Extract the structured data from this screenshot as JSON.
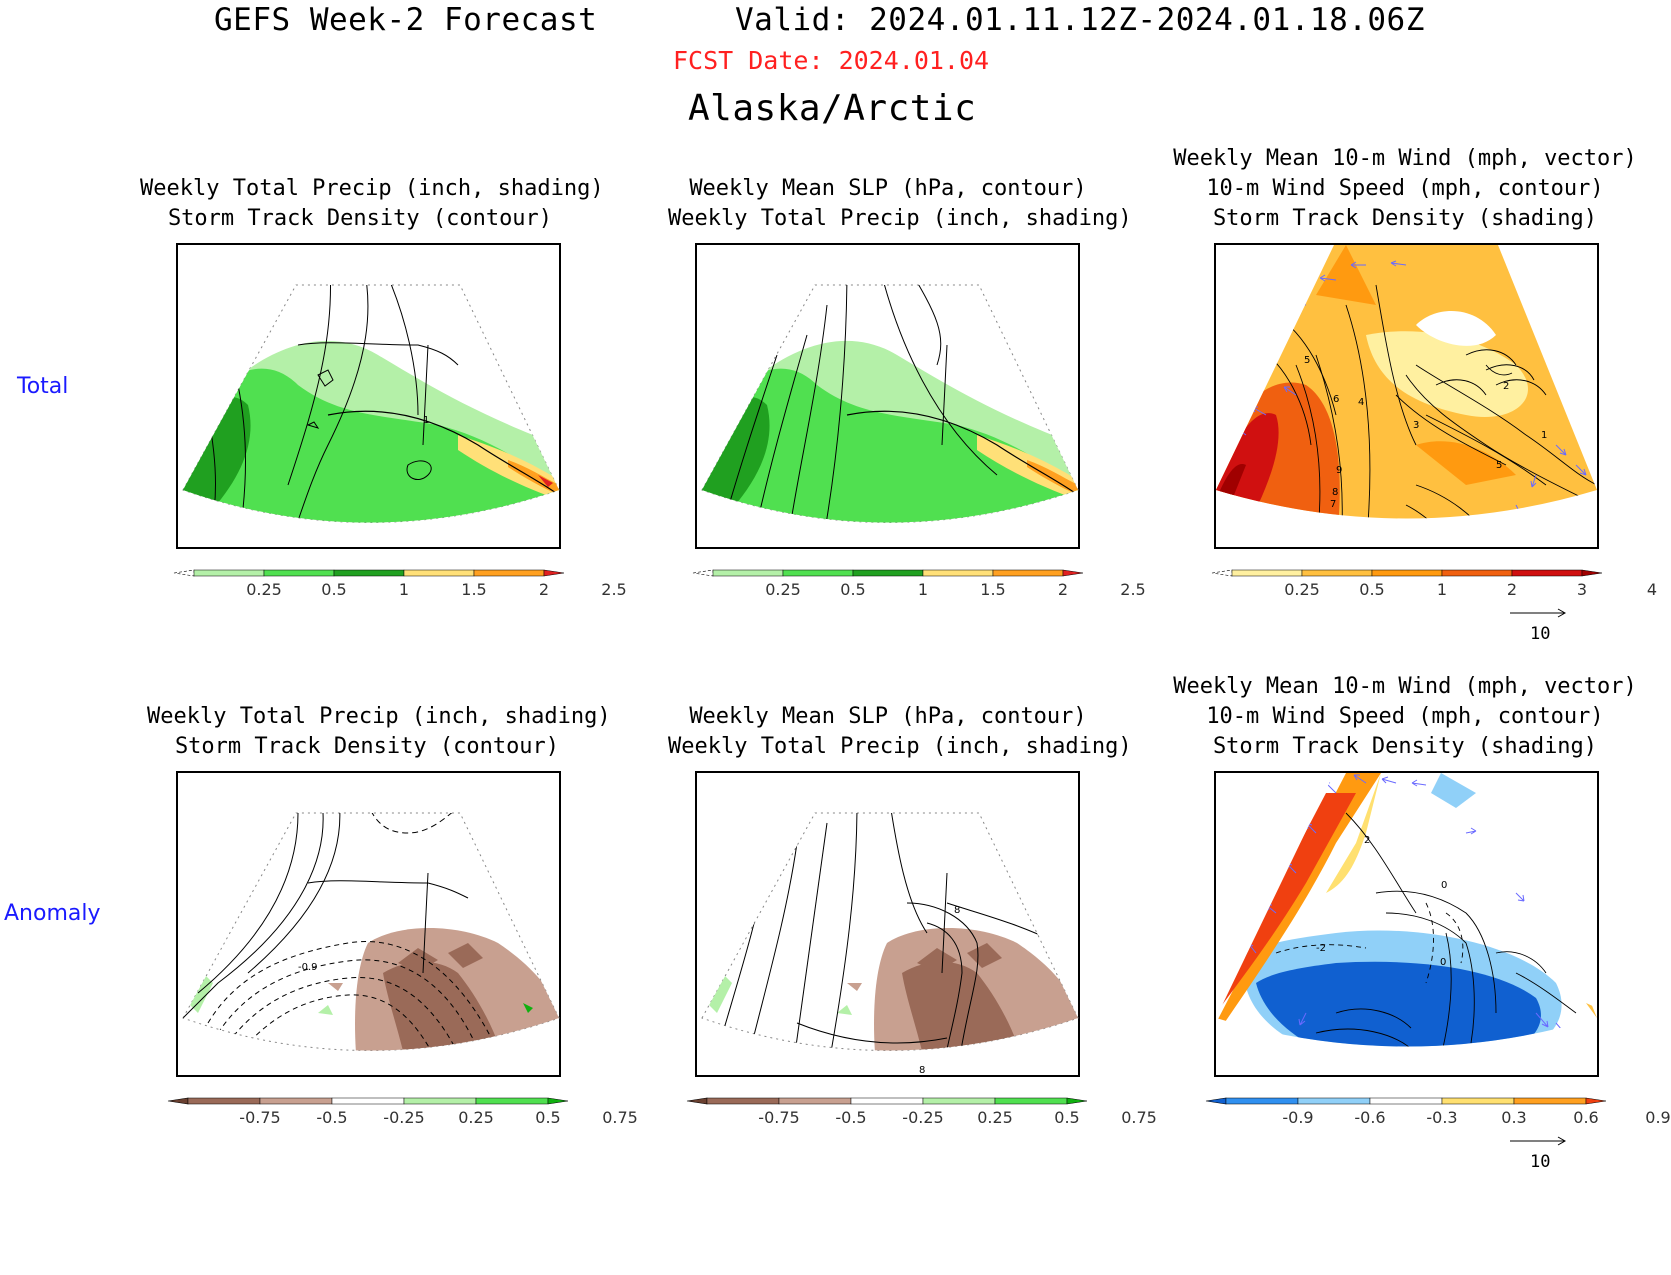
{
  "header": {
    "title": "GEFS Week-2 Forecast",
    "valid": "Valid: 2024.01.11.12Z-2024.01.18.06Z",
    "fcst_date": "FCST Date: 2024.01.04",
    "region": "Alaska/Arctic"
  },
  "rows": {
    "total_label": "Total",
    "anomaly_label": "Anomaly"
  },
  "panels": {
    "p1": {
      "line1": "Weekly Total Precip (inch, shading)",
      "line2": "Storm Track Density (contour)"
    },
    "p2": {
      "line1": "Weekly Mean SLP (hPa, contour)",
      "line2": "Weekly Total Precip (inch, shading)"
    },
    "p3": {
      "line1": "Weekly Mean 10-m Wind (mph, vector)",
      "line2": "10-m Wind Speed (mph, contour)",
      "line3": "Storm Track Density (shading)"
    },
    "p4": {
      "line1": "Weekly Total Precip (inch, shading)",
      "line2": "Storm Track Density (contour)"
    },
    "p5": {
      "line1": "Weekly Mean SLP (hPa, contour)",
      "line2": "Weekly Total Precip (inch, shading)"
    },
    "p6": {
      "line1": "Weekly Mean 10-m Wind (mph, vector)",
      "line2": "10-m Wind Speed (mph, contour)",
      "line3": "Storm Track Density (shading)"
    }
  },
  "colorbars": {
    "precip_total": {
      "ticks": [
        "0.25",
        "0.5",
        "1",
        "1.5",
        "2",
        "2.5"
      ],
      "colors": [
        "#ffffff",
        "#b4f0a8",
        "#50e050",
        "#20a020",
        "#ffe078",
        "#ffa020",
        "#e02020"
      ]
    },
    "storm_total": {
      "ticks": [
        "0.25",
        "0.5",
        "1",
        "2",
        "3",
        "4"
      ],
      "colors": [
        "#ffffff",
        "#fff0a0",
        "#ffc040",
        "#ff9a10",
        "#f06010",
        "#d01010",
        "#a00000"
      ]
    },
    "precip_anom": {
      "ticks": [
        "-0.75",
        "-0.5",
        "-0.25",
        "0.25",
        "0.5",
        "0.75"
      ],
      "colors": [
        "#6a4030",
        "#9a6a58",
        "#c8a090",
        "#ffffff",
        "#b4f0a8",
        "#50e050",
        "#10b010"
      ]
    },
    "storm_anom": {
      "ticks": [
        "-0.9",
        "-0.6",
        "-0.3",
        "0.3",
        "0.6",
        "0.9"
      ],
      "colors": [
        "#1060d0",
        "#3090f0",
        "#90d0f8",
        "#ffffff",
        "#ffe070",
        "#ffa020",
        "#f04010"
      ]
    }
  },
  "vector_key": {
    "label": "10"
  },
  "contour_labels": {
    "p1": [
      "1"
    ],
    "p3": [
      "5",
      "6",
      "4",
      "3",
      "2",
      "1",
      "9",
      "8",
      "7",
      "5"
    ],
    "p4": [
      "-0.9"
    ],
    "p5": [
      "8",
      "8"
    ],
    "p6": [
      "2",
      "0",
      "-2",
      "0"
    ]
  }
}
